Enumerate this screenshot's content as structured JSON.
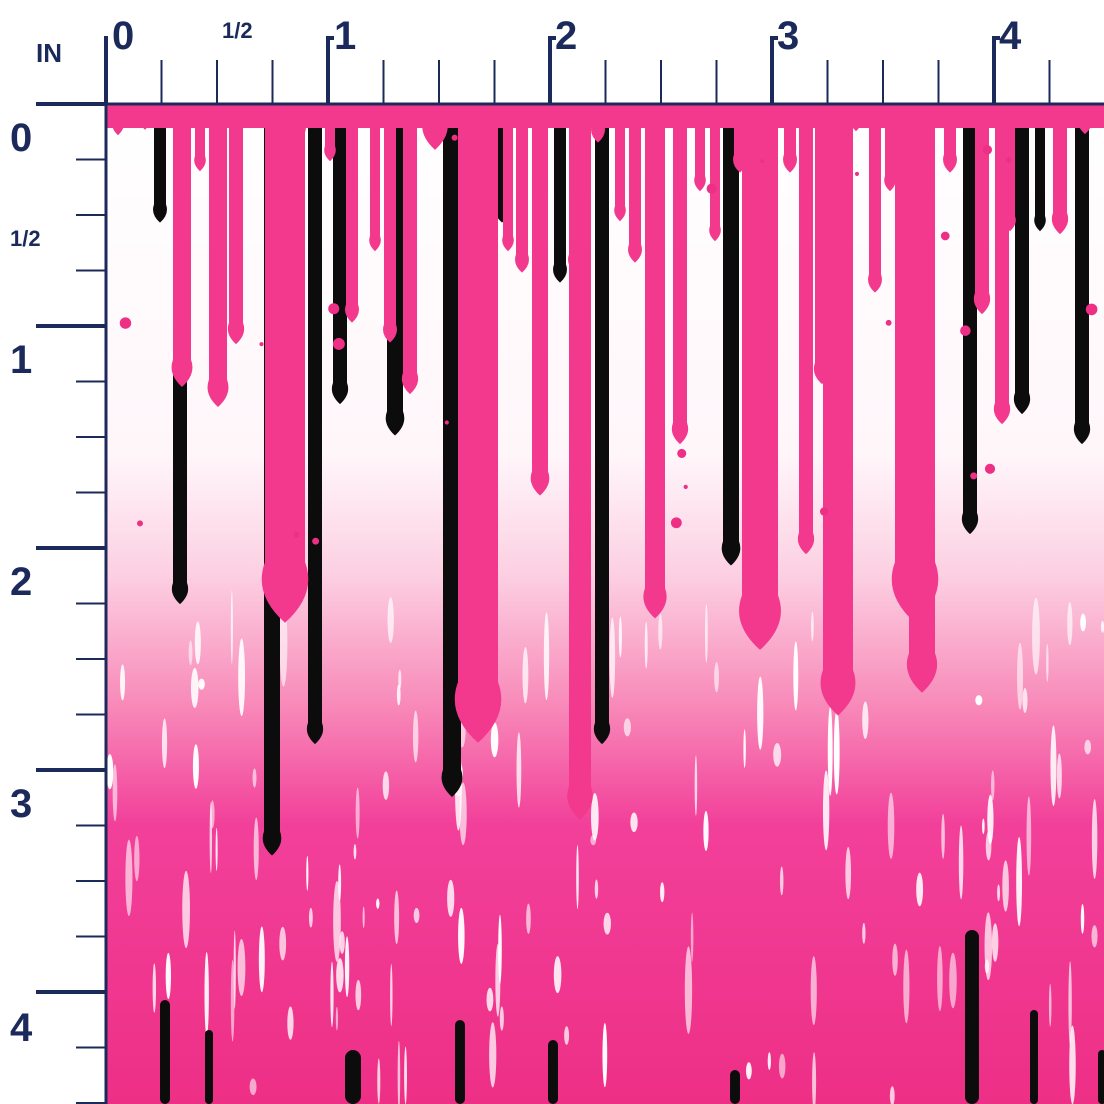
{
  "ruler": {
    "unit_label": "IN",
    "top_labels": [
      "0",
      "1/2",
      "1",
      "2",
      "3",
      "4"
    ],
    "left_labels": [
      "0",
      "1/2",
      "1",
      "2",
      "3",
      "4"
    ],
    "ruler_color": "#1b2a5a"
  },
  "swatch": {
    "description_icon": "drip-pattern-icon",
    "colors": {
      "pink": "#f2398e",
      "hot_pink": "#ee2f86",
      "black": "#0c0c0c",
      "white": "#ffffff"
    }
  }
}
